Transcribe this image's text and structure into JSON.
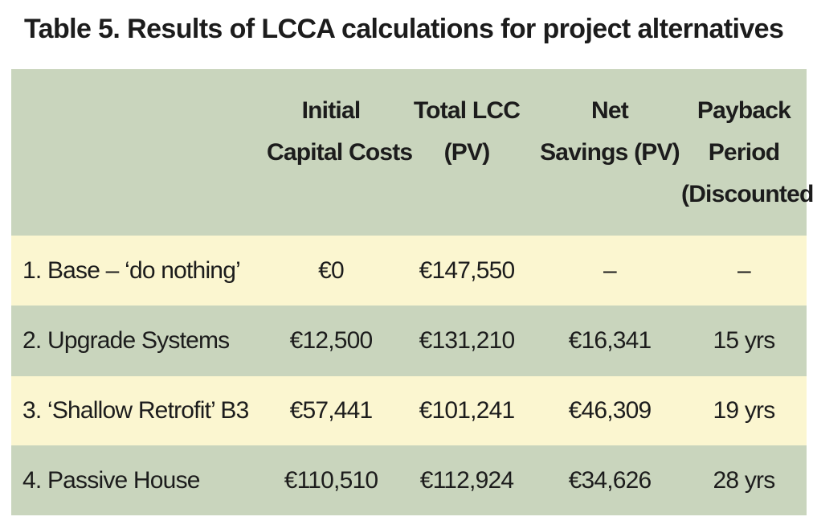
{
  "title": "Table 5. Results of LCCA calculations for project alternatives",
  "table": {
    "headers": [
      {
        "lines": [
          ""
        ]
      },
      {
        "lines": [
          "Initial",
          "Capital Costs"
        ]
      },
      {
        "lines": [
          "Total LCC",
          "(PV)"
        ]
      },
      {
        "lines": [
          "Net",
          "Savings (PV)"
        ]
      },
      {
        "lines": [
          "Payback",
          "Period",
          "(Discounted)"
        ]
      }
    ],
    "rows": [
      [
        "1. Base – ‘do nothing’",
        "€0",
        "€147,550",
        "–",
        "–"
      ],
      [
        "2. Upgrade Systems",
        "€12,500",
        "€131,210",
        "€16,341",
        "15 yrs"
      ],
      [
        "3. ‘Shallow Retrofit’ B3",
        "€57,441",
        "€101,241",
        "€46,309",
        "19 yrs"
      ],
      [
        "4. Passive House",
        "€110,510",
        "€112,924",
        "€34,626",
        "28 yrs"
      ]
    ]
  },
  "colors": {
    "header_bg": "#c9d5bd",
    "row_odd_bg": "#fbf6d0",
    "row_even_bg": "#c9d5bd",
    "text": "#1c1c1c"
  }
}
